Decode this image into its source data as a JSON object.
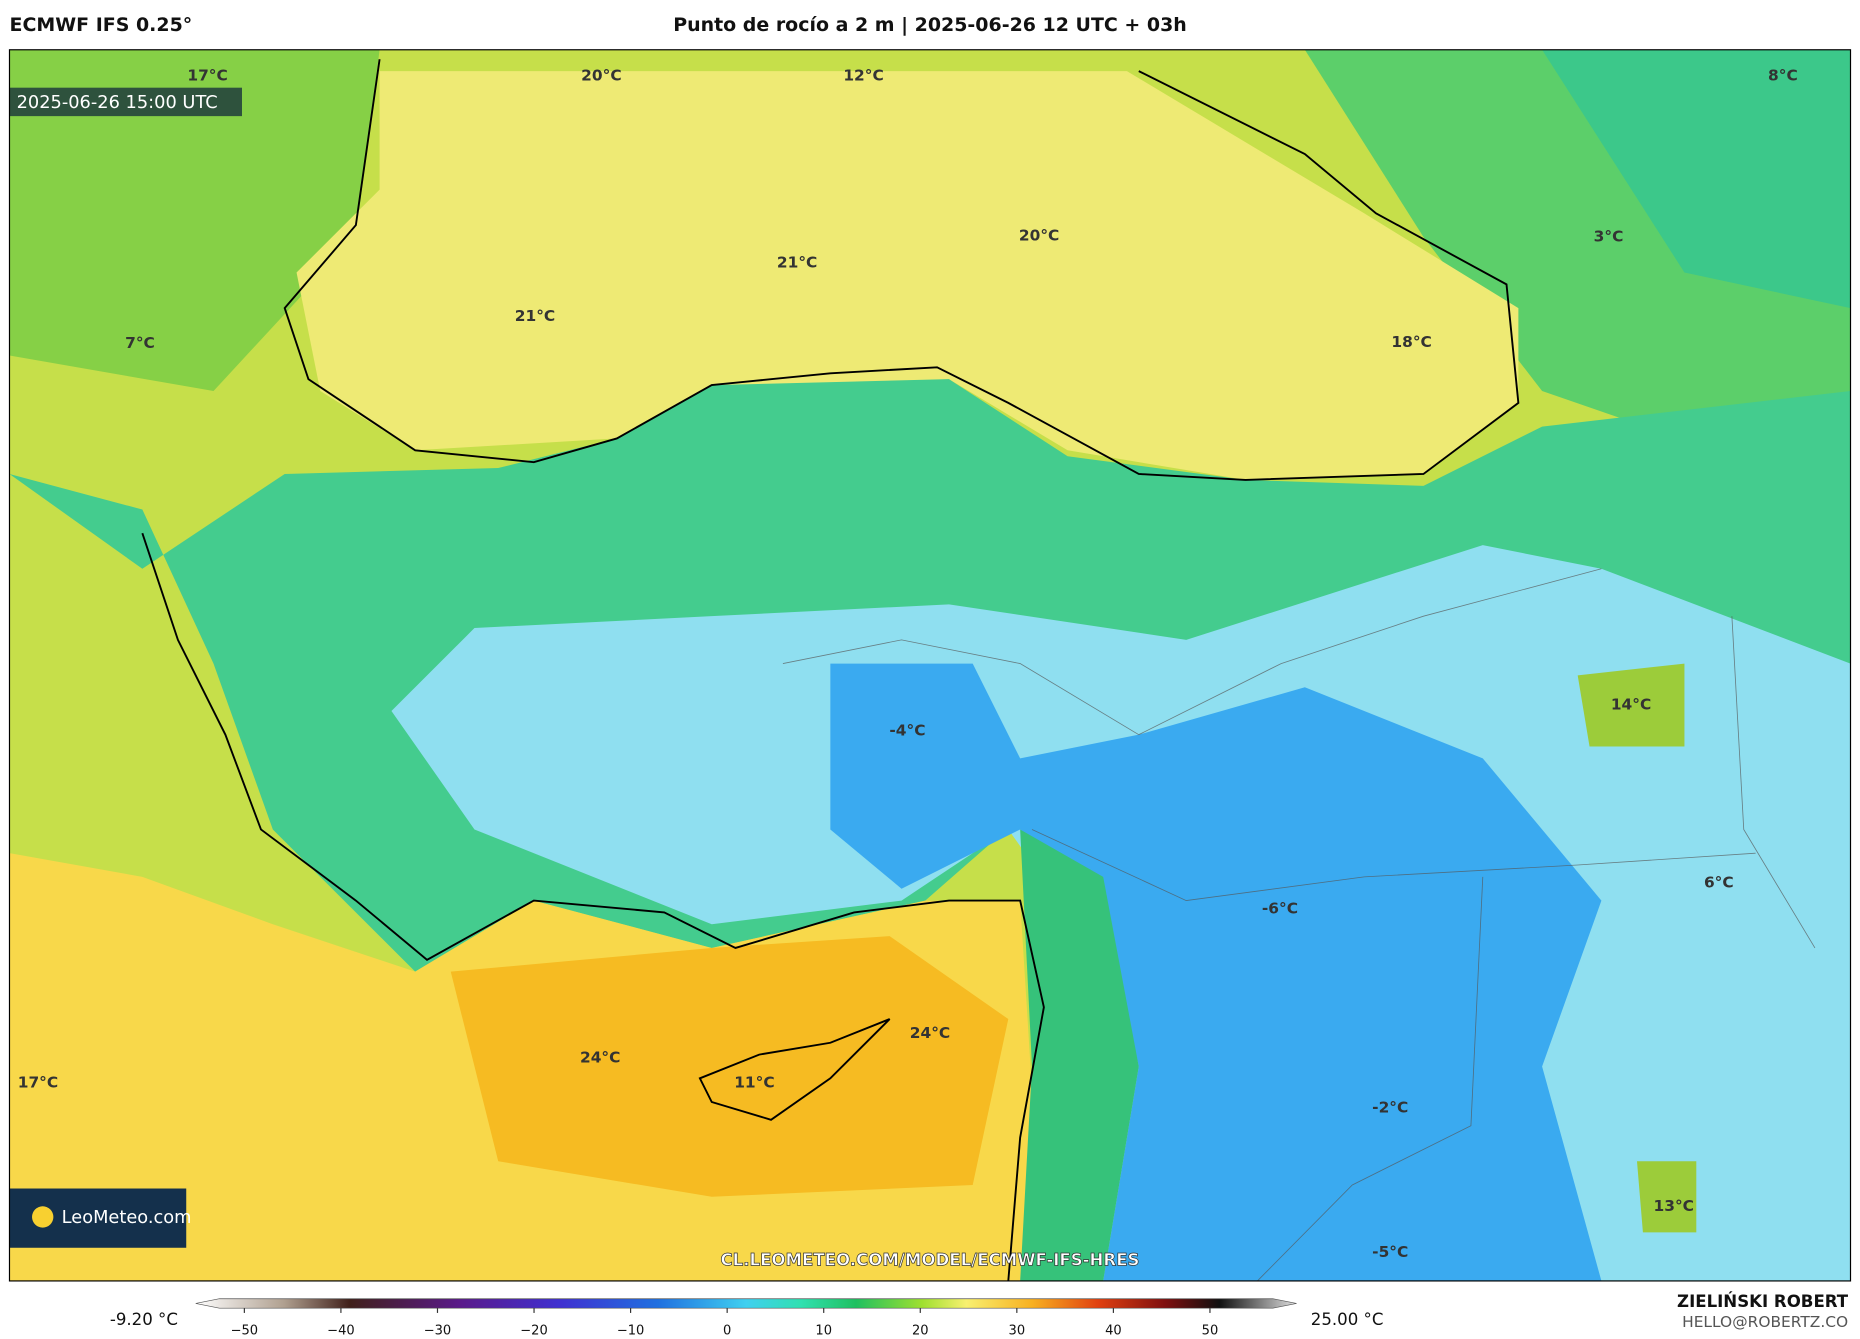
{
  "header": {
    "model": "ECMWF IFS 0.25°",
    "title": "Punto de rocío a 2 m | 2025-06-26 12 UTC + 03h"
  },
  "map": {
    "valid_time": "2025-06-26 15:00 UTC",
    "labels": [
      "17°C",
      "20°C",
      "12°C",
      "8°C",
      "20°C",
      "21°C",
      "21°C",
      "3°C",
      "7°C",
      "18°C",
      "14°C",
      "-4°C",
      "6°C",
      "-6°C",
      "24°C",
      "24°C",
      "11°C",
      "17°C",
      "-2°C",
      "13°C",
      "-5°C"
    ],
    "source_url": "CL.LEOMETEO.COM/MODEL/ECMWF-IFS-HRES",
    "logo": "LeoMeteo.com"
  },
  "colorbar": {
    "min_label": "-9.20 °C",
    "max_label": "25.00 °C",
    "ticks": [
      "−50",
      "−40",
      "−30",
      "−20",
      "−10",
      "0",
      "10",
      "20",
      "30",
      "40",
      "50"
    ]
  },
  "footer": {
    "author": "ZIELIŃSKI ROBERT",
    "email": "HELLO@ROBERTZ.CO"
  }
}
